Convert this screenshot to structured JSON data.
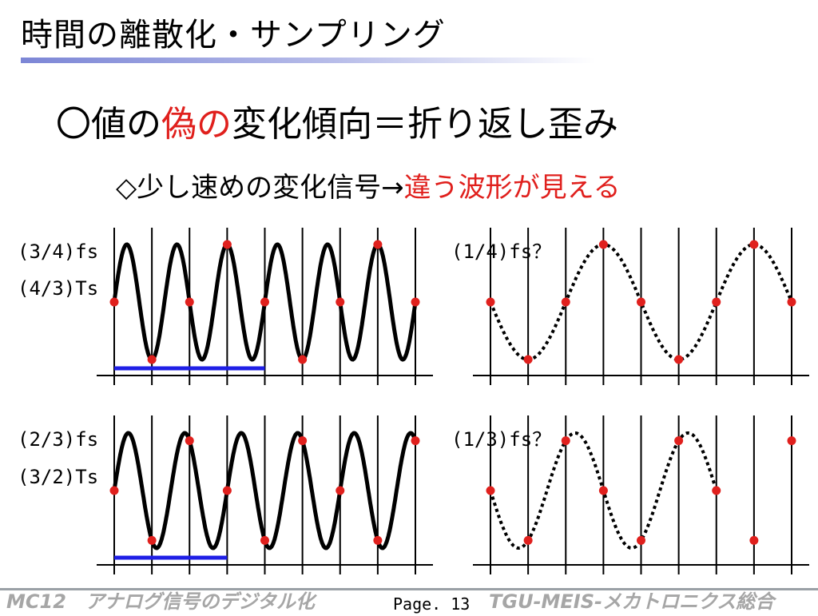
{
  "header": {
    "title": "時間の離散化・サンプリング"
  },
  "headline": {
    "part1": "〇値の",
    "part_red": "偽の",
    "part2": "変化傾向＝折り返し歪み"
  },
  "point": {
    "text": "◇少し速めの変化信号→",
    "text_red": "違う波形が見える"
  },
  "colors": {
    "accent_red": "#e0201d",
    "sample_blue": "#1f1fe6",
    "footer_gray": "#a6a6a6"
  },
  "labels": {
    "top_freq": "(3/4)fs",
    "top_period": "(4/3)Ts",
    "top_alias": "(1/4)fs？",
    "bottom_freq": "(2/3)fs",
    "bottom_period": "(3/2)Ts",
    "bottom_alias": "(1/3)fs？"
  },
  "chart_data": [
    {
      "type": "line",
      "position": "top-left",
      "series": [
        {
          "style": "solid",
          "cycles_per_sample": 0.75,
          "samples": 8,
          "phase": "sin",
          "values": [
            0,
            -1,
            0,
            1,
            0,
            -1,
            0,
            1,
            0
          ]
        }
      ],
      "sample_points": [
        0,
        -1,
        0,
        1,
        0,
        -1,
        0,
        1,
        0
      ],
      "period_bar": {
        "from": 0,
        "to": 4,
        "color": "blue"
      }
    },
    {
      "type": "line",
      "position": "top-right",
      "series": [
        {
          "style": "dotted",
          "cycles_per_sample": 0.25,
          "samples": 8,
          "phase": "-sin",
          "values": [
            0,
            -1,
            0,
            1,
            0,
            -1,
            0,
            1,
            0
          ]
        }
      ],
      "sample_points": [
        0,
        -1,
        0,
        1,
        0,
        -1,
        0,
        1,
        0
      ]
    },
    {
      "type": "line",
      "position": "bottom-left",
      "series": [
        {
          "style": "solid",
          "cycles_per_sample": 0.6667,
          "samples": 8,
          "phase": "sin",
          "values": [
            0,
            -0.866,
            0.866,
            0,
            -0.866,
            0.866,
            0,
            -0.866,
            0.866
          ]
        }
      ],
      "sample_points": [
        0,
        -0.866,
        0.866,
        0,
        -0.866,
        0.866,
        0,
        -0.866,
        0.866
      ],
      "period_bar": {
        "from": 0,
        "to": 3,
        "color": "blue"
      }
    },
    {
      "type": "line",
      "position": "bottom-right",
      "series": [
        {
          "style": "dotted",
          "cycles_per_sample": 0.3333,
          "samples": 6,
          "phase": "-sin",
          "values": [
            0,
            -0.866,
            0.866,
            0,
            -0.866,
            0.866,
            0
          ]
        }
      ],
      "sample_points": [
        0,
        -0.866,
        0.866,
        0,
        -0.866,
        0.866,
        0,
        -0.866,
        0.866
      ]
    }
  ],
  "footer": {
    "left": "MC12　アナログ信号のデジタル化",
    "page": "Page. 13",
    "right": "TGU-MEIS-メカトロニクス総合"
  }
}
